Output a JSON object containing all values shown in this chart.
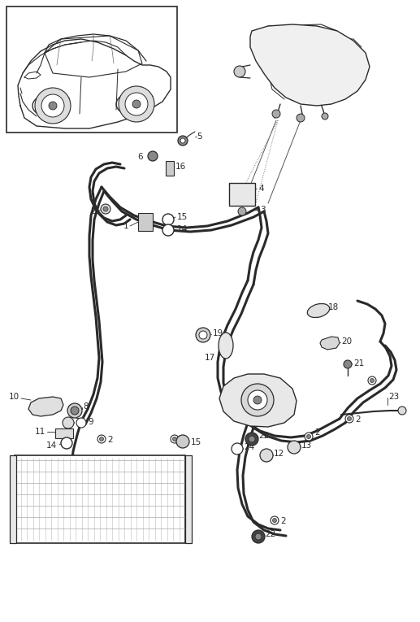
{
  "bg_color": "#ffffff",
  "line_color": "#2a2a2a",
  "fig_width": 5.17,
  "fig_height": 7.65,
  "dpi": 100
}
